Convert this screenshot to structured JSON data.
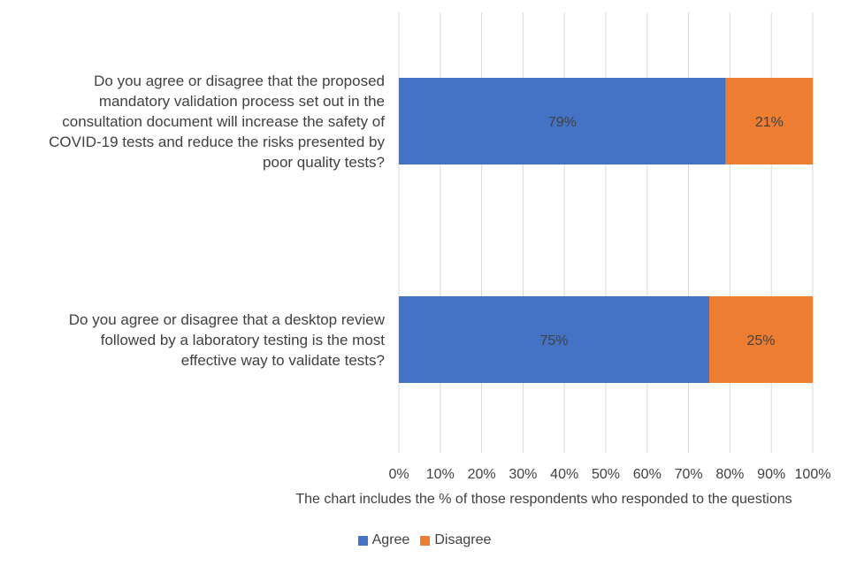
{
  "chart_data": {
    "type": "bar",
    "orientation": "horizontal",
    "stacked": true,
    "categories": [
      "Do you agree or disagree that the proposed mandatory validation process set out in the consultation document will increase the safety of COVID-19 tests and reduce the risks presented by poor quality tests?",
      "Do you agree or disagree that a desktop review followed by a laboratory testing is the most effective way to validate tests?"
    ],
    "series": [
      {
        "name": "Agree",
        "values": [
          79,
          75
        ],
        "labels": [
          "79%",
          "75%"
        ],
        "color": "#4472C4"
      },
      {
        "name": "Disagree",
        "values": [
          21,
          25
        ],
        "labels": [
          "21%",
          "25%"
        ],
        "color": "#ED7D31"
      }
    ],
    "xlabel": "The chart includes the % of those respondents who responded to the questions",
    "xlim": [
      0,
      100
    ],
    "xticks": [
      "0%",
      "10%",
      "20%",
      "30%",
      "40%",
      "50%",
      "60%",
      "70%",
      "80%",
      "90%",
      "100%"
    ],
    "grid": "vertical",
    "legend_position": "bottom"
  },
  "category_lines": [
    [
      "Do you agree or disagree that the proposed",
      "mandatory validation process set out in the",
      "consultation document will increase the safety of",
      "COVID-19 tests and reduce the risks presented by",
      "poor quality tests?"
    ],
    [
      "Do you agree or disagree that a desktop review",
      "followed by a laboratory testing is the most",
      "effective way to validate tests?"
    ]
  ]
}
